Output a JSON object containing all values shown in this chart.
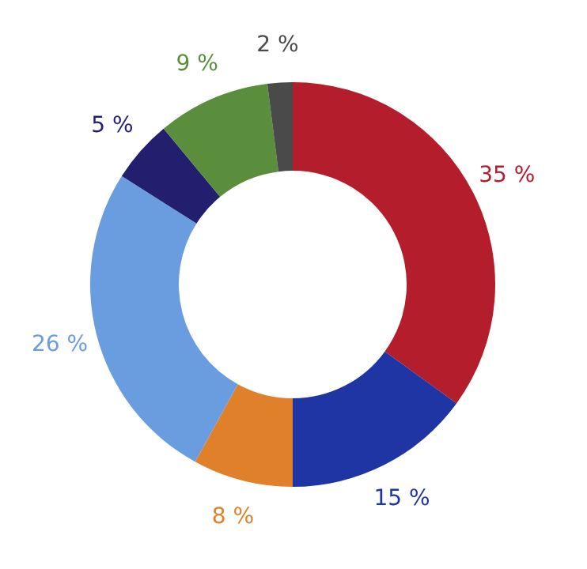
{
  "chart_data": {
    "type": "donut",
    "categories": [
      null,
      null,
      null,
      null,
      null,
      null,
      null
    ],
    "values": [
      35,
      15,
      8,
      26,
      5,
      9,
      2
    ],
    "colors": [
      "#b41e2c",
      "#1f35a3",
      "#e0802a",
      "#6a9ce0",
      "#221f6e",
      "#5a8e3c",
      "#4a4a4a"
    ],
    "value_labels": [
      "35 %",
      "15 %",
      "8 %",
      "26 %",
      "5 %",
      "9 %",
      "2 %"
    ]
  }
}
